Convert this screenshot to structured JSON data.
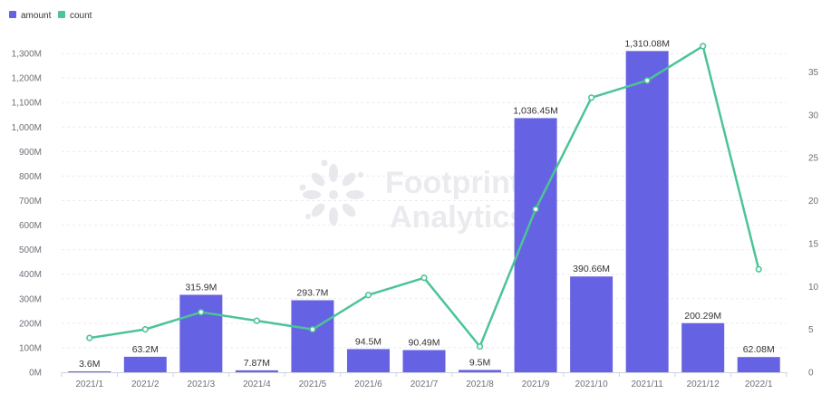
{
  "chart_data": {
    "type": "bar",
    "categories": [
      "2021/1",
      "2021/2",
      "2021/3",
      "2021/4",
      "2021/5",
      "2021/6",
      "2021/7",
      "2021/8",
      "2021/9",
      "2021/10",
      "2021/11",
      "2021/12",
      "2022/1"
    ],
    "series": [
      {
        "name": "amount",
        "type": "bar",
        "axis": "left",
        "color": "#6563e3",
        "values": [
          3.6,
          63.2,
          315.9,
          7.87,
          293.7,
          94.5,
          90.49,
          9.5,
          1036.45,
          390.66,
          1310.08,
          200.29,
          62.08
        ],
        "labels": [
          "3.6M",
          "63.2M",
          "315.9M",
          "7.87M",
          "293.7M",
          "94.5M",
          "90.49M",
          "9.5M",
          "1,036.45M",
          "390.66M",
          "1,310.08M",
          "200.29M",
          "62.08M"
        ]
      },
      {
        "name": "count",
        "type": "line",
        "axis": "right",
        "color": "#4cc495",
        "values": [
          4,
          5,
          7,
          6,
          5,
          9,
          11,
          3,
          19,
          32,
          34,
          38,
          12
        ]
      }
    ],
    "y_left": {
      "range": [
        0,
        1400
      ],
      "ticks": [
        0,
        100,
        200,
        300,
        400,
        500,
        600,
        700,
        800,
        900,
        1000,
        1100,
        1200,
        1300
      ],
      "tick_labels": [
        "0M",
        "100M",
        "200M",
        "300M",
        "400M",
        "500M",
        "600M",
        "700M",
        "800M",
        "900M",
        "1,000M",
        "1,100M",
        "1,200M",
        "1,300M"
      ]
    },
    "y_right": {
      "range": [
        0,
        40
      ],
      "ticks": [
        0,
        5,
        10,
        15,
        20,
        25,
        30,
        35
      ],
      "tick_labels": [
        "0",
        "5",
        "10",
        "15",
        "20",
        "25",
        "30",
        "35"
      ]
    },
    "grid": true,
    "legend_position": "top-left"
  },
  "legend": [
    {
      "label": "amount",
      "color": "#6563e3"
    },
    {
      "label": "count",
      "color": "#4cc495"
    }
  ],
  "watermark": {
    "line1": "Footprint",
    "line2": "Analytics"
  }
}
